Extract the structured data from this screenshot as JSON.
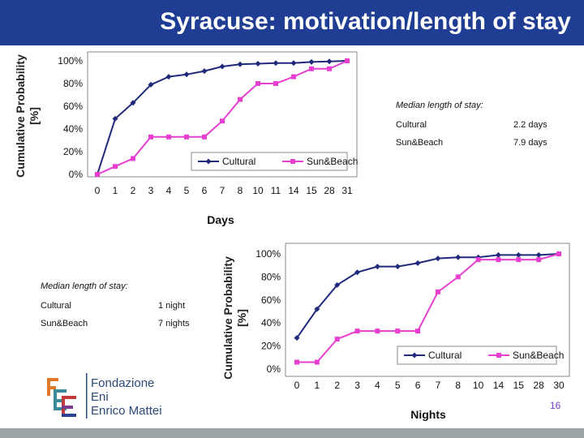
{
  "slide": {
    "title": "Syracuse: motivation/length of stay",
    "page_number": "16",
    "header_color": "#1f3e93"
  },
  "logo": {
    "lines": [
      "Fondazione",
      "Eni",
      "Enrico Mattei"
    ]
  },
  "median_top": {
    "heading": "Median length of stay:",
    "rows": [
      {
        "label": "Cultural",
        "value": "2.2 days"
      },
      {
        "label": "Sun&Beach",
        "value": "7.9 days"
      }
    ]
  },
  "median_bottom": {
    "heading": "Median length of stay:",
    "rows": [
      {
        "label": "Cultural",
        "value": "1 night"
      },
      {
        "label": "Sun&Beach",
        "value": "7 nights"
      }
    ]
  },
  "chart_data": [
    {
      "type": "line",
      "title": "",
      "xlabel": "Days",
      "ylabel": "Cumulative Probability [%]",
      "categories": [
        "0",
        "1",
        "2",
        "3",
        "4",
        "5",
        "6",
        "7",
        "8",
        "10",
        "11",
        "14",
        "15",
        "28",
        "31"
      ],
      "y_ticks": [
        "0%",
        "20%",
        "40%",
        "60%",
        "80%",
        "100%"
      ],
      "ylim": [
        0,
        100
      ],
      "legend": "bottom-right inside",
      "series": [
        {
          "name": "Cultural",
          "color": "#1f2a7a",
          "marker": "diamond",
          "values": [
            0,
            49,
            63,
            79,
            86,
            88,
            91,
            95,
            97,
            97.5,
            98,
            98,
            99,
            99.5,
            100
          ]
        },
        {
          "name": "Sun&Beach",
          "color": "#e83fd0",
          "marker": "square",
          "values": [
            0,
            7,
            14,
            33,
            33,
            33,
            33,
            47,
            66,
            80,
            80,
            86,
            93,
            93,
            100
          ]
        }
      ]
    },
    {
      "type": "line",
      "title": "",
      "xlabel": "Nights",
      "ylabel": "Cumulative Probability [%]",
      "categories": [
        "0",
        "1",
        "2",
        "3",
        "4",
        "5",
        "6",
        "7",
        "8",
        "10",
        "14",
        "15",
        "28",
        "30"
      ],
      "y_ticks": [
        "0%",
        "20%",
        "40%",
        "60%",
        "80%",
        "100%"
      ],
      "ylim": [
        0,
        100
      ],
      "legend": "bottom-right inside",
      "series": [
        {
          "name": "Cultural",
          "color": "#1f2a7a",
          "marker": "diamond",
          "values": [
            27,
            52,
            73,
            84,
            89,
            89,
            92,
            96,
            97,
            97,
            99,
            99,
            99,
            100
          ]
        },
        {
          "name": "Sun&Beach",
          "color": "#e83fd0",
          "marker": "square",
          "values": [
            6,
            6,
            26,
            33,
            33,
            33,
            33,
            67,
            80,
            95,
            95,
            95,
            95,
            100
          ]
        }
      ]
    }
  ]
}
